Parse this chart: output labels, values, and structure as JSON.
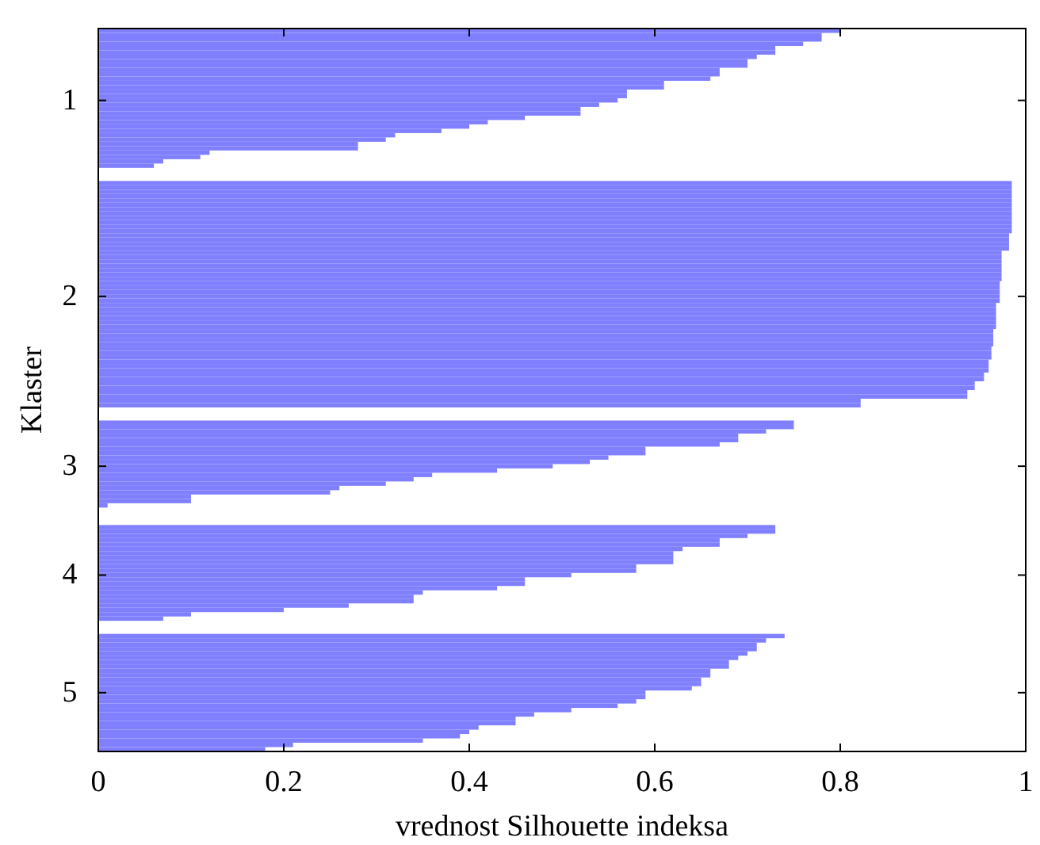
{
  "chart_data": {
    "type": "bar",
    "orientation": "horizontal",
    "xlabel": "vrednost Silhouette indeksa",
    "ylabel": "Klaster",
    "categories": [
      null,
      null,
      null,
      null,
      null,
      null,
      null,
      null,
      null,
      null,
      null,
      null,
      null,
      null,
      null,
      null,
      "1",
      null,
      null,
      null,
      null,
      null,
      null,
      null,
      null,
      null,
      null,
      null,
      null,
      null,
      null,
      null,
      null,
      null,
      null,
      null,
      null,
      null,
      null,
      null,
      null,
      null,
      null,
      null,
      null,
      null,
      null,
      null,
      null,
      null,
      null,
      null,
      null,
      null,
      null,
      null,
      null,
      null,
      null,
      null,
      null,
      "2",
      null,
      null,
      null,
      null,
      null,
      null,
      null,
      null,
      null,
      null,
      null,
      null,
      null,
      null,
      null,
      null,
      null,
      null,
      null,
      null,
      null,
      null,
      null,
      null,
      null,
      null,
      null,
      null,
      null,
      null,
      null,
      null,
      null,
      null,
      null,
      null,
      null,
      null,
      "3",
      null,
      null,
      null,
      null,
      null,
      null,
      null,
      null,
      null,
      null,
      null,
      null,
      null,
      null,
      null,
      null,
      null,
      null,
      null,
      null,
      null,
      null,
      null,
      null,
      "4",
      null,
      null,
      null,
      null,
      null,
      null,
      null,
      null,
      null,
      null,
      null,
      null,
      null,
      null,
      null,
      null,
      null,
      null,
      null,
      null,
      null,
      null,
      null,
      null,
      null,
      null,
      "5",
      null,
      null,
      null,
      null,
      null,
      null,
      null,
      null,
      null,
      null,
      null,
      null,
      null
    ],
    "values": [
      0.8,
      0.78,
      0.78,
      0.76,
      0.73,
      0.73,
      0.71,
      0.7,
      0.7,
      0.67,
      0.67,
      0.66,
      0.61,
      0.61,
      0.57,
      0.57,
      0.56,
      0.54,
      0.52,
      0.52,
      0.46,
      0.42,
      0.4,
      0.37,
      0.32,
      0.31,
      0.28,
      0.28,
      0.12,
      0.11,
      0.07,
      0.06,
      null,
      null,
      null,
      0.985,
      0.985,
      0.985,
      0.985,
      0.985,
      0.985,
      0.985,
      0.985,
      0.985,
      0.985,
      0.985,
      0.985,
      0.982,
      0.982,
      0.982,
      0.982,
      0.974,
      0.974,
      0.974,
      0.974,
      0.974,
      0.974,
      0.974,
      0.972,
      0.972,
      0.972,
      0.972,
      0.972,
      0.968,
      0.968,
      0.968,
      0.968,
      0.968,
      0.968,
      0.965,
      0.965,
      0.965,
      0.965,
      0.963,
      0.963,
      0.963,
      0.96,
      0.96,
      0.96,
      0.955,
      0.955,
      0.945,
      0.945,
      0.937,
      0.937,
      0.822,
      0.822,
      null,
      null,
      null,
      0.75,
      0.75,
      0.72,
      0.69,
      0.69,
      0.67,
      0.59,
      0.59,
      0.55,
      0.53,
      0.49,
      0.43,
      0.36,
      0.34,
      0.31,
      0.26,
      0.25,
      0.1,
      0.1,
      0.01,
      null,
      null,
      null,
      null,
      0.73,
      0.73,
      0.7,
      0.67,
      0.67,
      0.63,
      0.62,
      0.62,
      0.62,
      0.58,
      0.58,
      0.51,
      0.46,
      0.46,
      0.43,
      0.35,
      0.34,
      0.34,
      0.27,
      0.2,
      0.1,
      0.07,
      null,
      null,
      null,
      0.74,
      0.72,
      0.71,
      0.71,
      0.7,
      0.69,
      0.68,
      0.68,
      0.66,
      0.66,
      0.65,
      0.65,
      0.64,
      0.59,
      0.59,
      0.58,
      0.56,
      0.51,
      0.47,
      0.45,
      0.45,
      0.41,
      0.4,
      0.39,
      0.35,
      0.21,
      0.18
    ],
    "color": "#8080ff",
    "xlim": [
      0,
      1
    ],
    "xticks": [
      0,
      0.2,
      0.4,
      0.6,
      0.8,
      1
    ],
    "grid": false
  }
}
